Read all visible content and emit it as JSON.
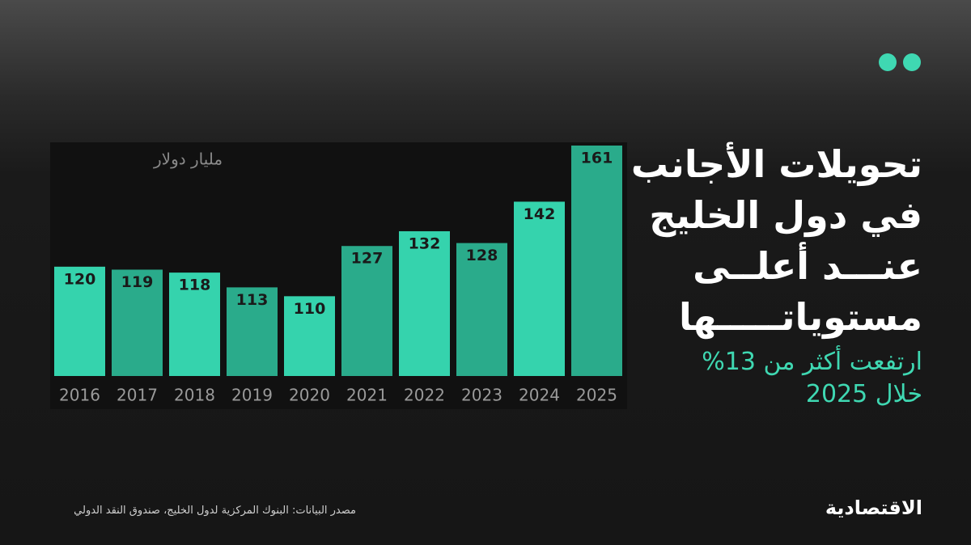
{
  "chart_data": {
    "type": "bar",
    "title": [
      "تحويلات الأجانب",
      "في دول الخليج",
      "عنـــد أعلــى",
      "مستوياتـــــها"
    ],
    "subtitle": [
      "ارتفعت أكثر من 13%",
      "خلال 2025"
    ],
    "unit_label": "مليار دولار",
    "source": "مصدر البيانات: البنوك المركزية لدول الخليج، صندوق النقد الدولي",
    "publisher": "الاقتصادية",
    "categories": [
      "2016",
      "2017",
      "2018",
      "2019",
      "2020",
      "2021",
      "2022",
      "2023",
      "2024",
      "2025"
    ],
    "values": [
      120,
      119,
      118,
      113,
      110,
      127,
      132,
      128,
      142,
      161
    ],
    "colors": [
      "#35d3ad",
      "#2aab8b",
      "#35d3ad",
      "#2aab8b",
      "#35d3ad",
      "#2aab8b",
      "#35d3ad",
      "#2aab8b",
      "#35d3ad",
      "#2aab8b"
    ],
    "ylim": [
      83,
      161
    ]
  }
}
